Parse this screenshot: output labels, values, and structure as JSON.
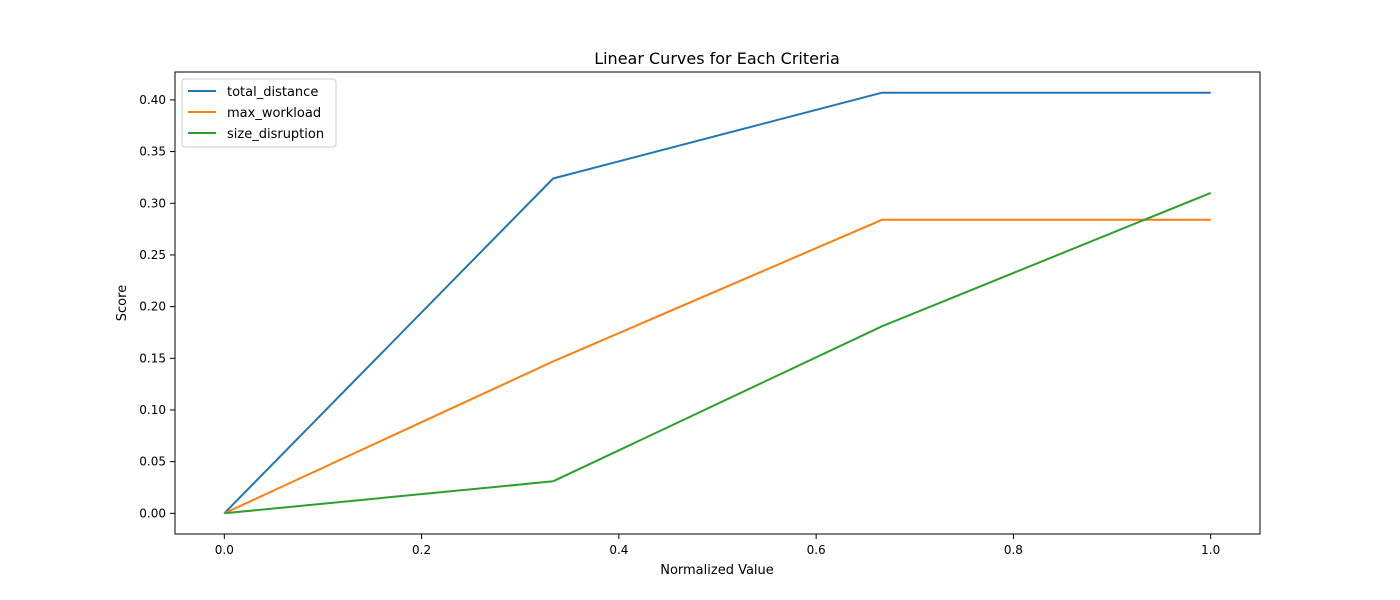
{
  "chart_data": {
    "type": "line",
    "title": "Linear Curves for Each Criteria",
    "xlabel": "Normalized Value",
    "ylabel": "Score",
    "xlim": [
      -0.05,
      1.05
    ],
    "ylim": [
      -0.02,
      0.427
    ],
    "x_ticks": [
      0.0,
      0.2,
      0.4,
      0.6,
      0.8,
      1.0
    ],
    "x_tick_labels": [
      "0.0",
      "0.2",
      "0.4",
      "0.6",
      "0.8",
      "1.0"
    ],
    "y_ticks": [
      0.0,
      0.05,
      0.1,
      0.15,
      0.2,
      0.25,
      0.3,
      0.35,
      0.4
    ],
    "y_tick_labels": [
      "0.00",
      "0.05",
      "0.10",
      "0.15",
      "0.20",
      "0.25",
      "0.30",
      "0.35",
      "0.40"
    ],
    "grid": false,
    "legend_position": "top-left",
    "x": [
      0.0,
      0.3333,
      0.6667,
      1.0
    ],
    "series": [
      {
        "name": "total_distance",
        "color": "#1f77b4",
        "values": [
          0.0,
          0.324,
          0.407,
          0.407
        ]
      },
      {
        "name": "max_workload",
        "color": "#ff7f0e",
        "values": [
          0.0,
          0.147,
          0.284,
          0.284
        ]
      },
      {
        "name": "size_disruption",
        "color": "#2ca02c",
        "values": [
          0.0,
          0.031,
          0.181,
          0.31
        ]
      }
    ]
  }
}
